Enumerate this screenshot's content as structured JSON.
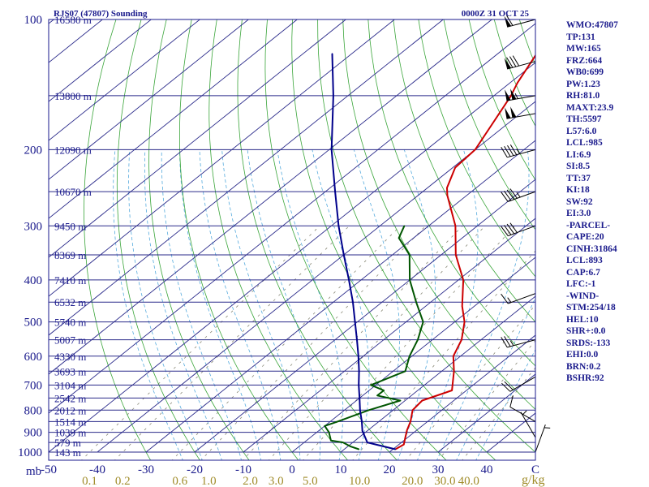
{
  "chart_data": {
    "type": "skew-t-log-p",
    "title": "RJS07 (47807) Sounding",
    "valid_time": "0000Z 31 OCT 25",
    "pressure_unit_label": "mb",
    "mixing_ratio_unit_label": "g/kg",
    "pressure_range_mb": [
      100,
      1000
    ],
    "temperature_range_c": [
      -50,
      50
    ],
    "pressure_levels_mb": [
      100,
      200,
      300,
      400,
      500,
      600,
      700,
      800,
      900,
      1000
    ],
    "pressure_tick_labels": [
      "100",
      "200",
      "300",
      "400",
      "500",
      "600",
      "700",
      "800",
      "900",
      "1000"
    ],
    "temperature_ticks_c": [
      -50,
      -40,
      -30,
      -20,
      -10,
      0,
      10,
      20,
      30,
      40,
      50
    ],
    "temperature_tick_labels": [
      "-50",
      "-40",
      "-30",
      "-20",
      "-10",
      "0",
      "10",
      "20",
      "30",
      "40",
      "C"
    ],
    "mixing_ratio_labels": [
      "0.1",
      "0.2",
      "0.6",
      "1.0",
      "2.0",
      "3.0",
      "5.0",
      "10.0",
      "20.0",
      "30.0",
      "40.0"
    ],
    "height_labels": [
      {
        "p": 100,
        "text": "16580 m"
      },
      {
        "p": 150,
        "text": "13800 m"
      },
      {
        "p": 200,
        "text": "12090 m"
      },
      {
        "p": 250,
        "text": "10670 m"
      },
      {
        "p": 300,
        "text": "9450 m"
      },
      {
        "p": 350,
        "text": "8369 m"
      },
      {
        "p": 400,
        "text": "7410 m"
      },
      {
        "p": 450,
        "text": "6532 m"
      },
      {
        "p": 500,
        "text": "5740 m"
      },
      {
        "p": 550,
        "text": "5007 m"
      },
      {
        "p": 600,
        "text": "4330 m"
      },
      {
        "p": 650,
        "text": "3693 m"
      },
      {
        "p": 700,
        "text": "3104 m"
      },
      {
        "p": 750,
        "text": "2542 m"
      },
      {
        "p": 800,
        "text": "2012 m"
      },
      {
        "p": 850,
        "text": "1514 m"
      },
      {
        "p": 900,
        "text": "1039 m"
      },
      {
        "p": 950,
        "text": "579 m"
      },
      {
        "p": 1000,
        "text": "143 m"
      }
    ],
    "series": [
      {
        "name": "Temperature",
        "color": "#cc0000",
        "points": [
          {
            "p": 985,
            "t": 20.5
          },
          {
            "p": 960,
            "t": 21.0
          },
          {
            "p": 925,
            "t": 19.5
          },
          {
            "p": 890,
            "t": 18.0
          },
          {
            "p": 850,
            "t": 16.5
          },
          {
            "p": 800,
            "t": 14.0
          },
          {
            "p": 760,
            "t": 13.5
          },
          {
            "p": 720,
            "t": 17.0
          },
          {
            "p": 650,
            "t": 12.5
          },
          {
            "p": 600,
            "t": 8.5
          },
          {
            "p": 550,
            "t": 6.0
          },
          {
            "p": 500,
            "t": 2.0
          },
          {
            "p": 460,
            "t": -2.5
          },
          {
            "p": 400,
            "t": -9.0
          },
          {
            "p": 350,
            "t": -17.0
          },
          {
            "p": 300,
            "t": -24.5
          },
          {
            "p": 255,
            "t": -34.0
          },
          {
            "p": 245,
            "t": -36.0
          },
          {
            "p": 220,
            "t": -39.5
          },
          {
            "p": 200,
            "t": -40.0
          },
          {
            "p": 175,
            "t": -43.0
          },
          {
            "p": 150,
            "t": -46.5
          },
          {
            "p": 140,
            "t": -48.5
          },
          {
            "p": 120,
            "t": -52.0
          },
          {
            "p": 112,
            "t": -54.0
          },
          {
            "p": 100,
            "t": -59.0
          }
        ]
      },
      {
        "name": "Dewpoint",
        "color": "#005500",
        "points": [
          {
            "p": 985,
            "t": 13.0
          },
          {
            "p": 970,
            "t": 10.5
          },
          {
            "p": 950,
            "t": 8.0
          },
          {
            "p": 940,
            "t": 5.0
          },
          {
            "p": 900,
            "t": 2.5
          },
          {
            "p": 870,
            "t": 0.0
          },
          {
            "p": 850,
            "t": 1.5
          },
          {
            "p": 800,
            "t": 5.0
          },
          {
            "p": 760,
            "t": 9.0
          },
          {
            "p": 740,
            "t": 3.0
          },
          {
            "p": 720,
            "t": 3.0
          },
          {
            "p": 700,
            "t": -1.0
          },
          {
            "p": 650,
            "t": 2.5
          },
          {
            "p": 600,
            "t": -0.5
          },
          {
            "p": 550,
            "t": -3.0
          },
          {
            "p": 500,
            "t": -6.5
          },
          {
            "p": 450,
            "t": -13.0
          },
          {
            "p": 400,
            "t": -20.0
          },
          {
            "p": 350,
            "t": -26.5
          },
          {
            "p": 320,
            "t": -33.0
          },
          {
            "p": 300,
            "t": -35.0
          }
        ]
      },
      {
        "name": "Parcel",
        "color": "#00008b",
        "points": [
          {
            "p": 985,
            "t": 20.5
          },
          {
            "p": 950,
            "t": 13.0
          },
          {
            "p": 893,
            "t": 9.0
          },
          {
            "p": 850,
            "t": 6.5
          },
          {
            "p": 800,
            "t": 3.2
          },
          {
            "p": 750,
            "t": 0.0
          },
          {
            "p": 700,
            "t": -3.5
          },
          {
            "p": 650,
            "t": -7.0
          },
          {
            "p": 600,
            "t": -11.0
          },
          {
            "p": 550,
            "t": -15.5
          },
          {
            "p": 500,
            "t": -20.5
          },
          {
            "p": 450,
            "t": -26.0
          },
          {
            "p": 400,
            "t": -32.5
          },
          {
            "p": 350,
            "t": -40.0
          },
          {
            "p": 300,
            "t": -48.5
          },
          {
            "p": 250,
            "t": -58.0
          },
          {
            "p": 200,
            "t": -69.5
          },
          {
            "p": 150,
            "t": -83.0
          },
          {
            "p": 120,
            "t": -94.0
          }
        ]
      }
    ],
    "wind_barbs": [
      {
        "p": 100,
        "dir": 255,
        "speed_kt": 60
      },
      {
        "p": 125,
        "dir": 255,
        "speed_kt": 80
      },
      {
        "p": 150,
        "dir": 260,
        "speed_kt": 105
      },
      {
        "p": 165,
        "dir": 260,
        "speed_kt": 100
      },
      {
        "p": 200,
        "dir": 255,
        "speed_kt": 45
      },
      {
        "p": 250,
        "dir": 250,
        "speed_kt": 45
      },
      {
        "p": 300,
        "dir": 250,
        "speed_kt": 40
      },
      {
        "p": 430,
        "dir": 250,
        "speed_kt": 15
      },
      {
        "p": 550,
        "dir": 255,
        "speed_kt": 25
      },
      {
        "p": 670,
        "dir": 240,
        "speed_kt": 20
      },
      {
        "p": 850,
        "dir": 300,
        "speed_kt": 10
      },
      {
        "p": 925,
        "dir": 330,
        "speed_kt": 5
      },
      {
        "p": 1000,
        "dir": 20,
        "speed_kt": 5
      }
    ]
  },
  "sidebar": [
    "WMO:47807",
    "TP:131",
    "MW:165",
    "FRZ:664",
    "WB0:699",
    "PW:1.23",
    "RH:81.0",
    "MAXT:23.9",
    "TH:5597",
    "L57:6.0",
    "LCL:985",
    "LI:6.9",
    "SI:8.5",
    "TT:37",
    "KI:18",
    "SW:92",
    "EI:3.0",
    "-PARCEL-",
    "CAPE:20",
    "CINH:31864",
    "LCL:893",
    "CAP:6.7",
    "LFC:-1",
    "-WIND-",
    "STM:254/18",
    "HEL:10",
    "SHR+:0.0",
    "SRDS:-133",
    "EHI:0.0",
    "BRN:0.2",
    "BSHR:92"
  ],
  "colors": {
    "isobar": "#2a2a8a",
    "isotherm": "#2a2a8a",
    "dry_adiabat": "#3aa53a",
    "moist_adiabat": "#55aadd",
    "mixing_ratio": "#888877",
    "label": "#1a1a8c",
    "mixing_label": "#a08c2a",
    "barb": "#000000"
  }
}
